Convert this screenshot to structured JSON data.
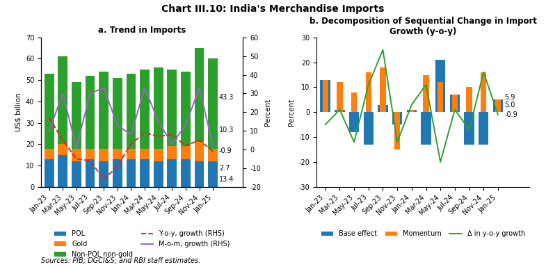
{
  "title": "Chart III.10: India's Merchandise Imports",
  "note": "Sources: PIB; DGCI&S; and RBI staff estimates.",
  "chart_data": [
    {
      "type": "bar",
      "title": "a. Trend in Imports",
      "stacked": true,
      "grid": false,
      "legend": "upper center",
      "categories": [
        "Jan-23",
        "Mar-23",
        "May-23",
        "Jul-23",
        "Sep-23",
        "Nov-23",
        "Jan-24",
        "Mar-24",
        "May-24",
        "Jul-24",
        "Sep-24",
        "Nov-24",
        "Jan-25"
      ],
      "y_label": "US$ billion",
      "y2_label": "Percent",
      "ylim": [
        0,
        70
      ],
      "yticks": [
        0,
        10,
        20,
        30,
        40,
        50,
        60,
        70
      ],
      "y2lim": [
        -20,
        60
      ],
      "y2ticks": [
        -20,
        -10,
        0,
        10,
        20,
        30,
        40,
        50,
        60
      ],
      "series": [
        {
          "name": "POL",
          "type": "bar",
          "values": [
            13,
            15,
            12,
            13,
            12,
            13,
            13,
            13,
            12,
            13,
            13,
            12,
            12
          ]
        },
        {
          "name": "Gold",
          "type": "bar",
          "values": [
            5,
            5,
            6,
            5,
            6,
            5,
            5,
            5,
            6,
            6,
            6,
            9,
            6
          ]
        },
        {
          "name": "Non-POL non-gold",
          "type": "bar",
          "values": [
            35,
            41,
            31,
            34,
            36,
            33,
            35,
            37,
            38,
            36,
            35,
            44,
            42
          ]
        },
        {
          "name": "Y-o-y, growth (RHS)",
          "type": "line",
          "axis": "y2",
          "line_style": "dashed",
          "values": [
            17,
            5,
            -5,
            -6,
            -16,
            -9,
            3,
            9,
            7,
            8,
            2,
            5,
            -1
          ]
        },
        {
          "name": "M-o-m, growth (RHS)",
          "type": "line",
          "axis": "y2",
          "line_style": "solid",
          "values": [
            10,
            30,
            1,
            30,
            33,
            13,
            8,
            33,
            15,
            3,
            13,
            33,
            2
          ]
        }
      ],
      "annotations": [
        {
          "text": "10.3",
          "y": 10.3,
          "axis": "y2"
        },
        {
          "text": "-0.9",
          "y": -0.9,
          "axis": "y2"
        },
        {
          "text": "13.4",
          "y": -16,
          "axis": "y2"
        },
        {
          "text": "43.3",
          "y": 28,
          "axis": "y2"
        },
        {
          "text": "2.7",
          "y": -10,
          "axis": "y2"
        }
      ]
    },
    {
      "type": "bar",
      "title": "b. Decomposition of Sequential Change in Import Growth (y-o-y)",
      "stacked": false,
      "grid": false,
      "legend": "upper center",
      "categories": [
        "Jan-23",
        "Mar-23",
        "May-23",
        "Jul-23",
        "Sep-23",
        "Nov-23",
        "Jan-24",
        "Mar-24",
        "May-24",
        "Jul-24",
        "Sep-24",
        "Nov-24",
        "Jan-25"
      ],
      "y_label": "Percent",
      "ylim": [
        -30,
        30
      ],
      "yticks": [
        -30,
        -20,
        -10,
        0,
        10,
        20,
        30
      ],
      "series": [
        {
          "name": "Base effect",
          "type": "bar",
          "values": [
            13,
            1,
            -8,
            -13,
            3,
            -5,
            1,
            -13,
            21,
            7,
            -13,
            -13,
            5
          ]
        },
        {
          "name": "Momentum",
          "type": "bar",
          "values": [
            13,
            12,
            8,
            16,
            18,
            -15,
            1,
            15,
            12,
            7,
            10,
            16,
            5
          ]
        },
        {
          "name": "Δ in y-o-y growth",
          "type": "line",
          "line_style": "solid",
          "values": [
            -5,
            1,
            -12,
            11,
            25,
            -12,
            3,
            11,
            -20,
            1,
            -7,
            16,
            -1
          ]
        }
      ],
      "annotations": [
        {
          "text": "5.9",
          "y": 5.9
        },
        {
          "text": "5.0",
          "y": 5.0
        },
        {
          "text": "-0.9",
          "y": -0.9
        }
      ]
    }
  ]
}
